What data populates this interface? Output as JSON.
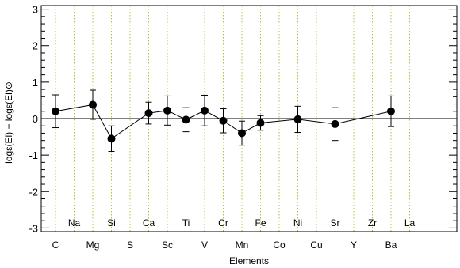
{
  "chart_data": {
    "type": "scatter",
    "title": "",
    "xlabel": "Elements",
    "ylabel": "logε(El) − logε(El)⊙",
    "ylim": [
      -3.1,
      3.1
    ],
    "yticks": [
      -3,
      -2,
      -1,
      0,
      1,
      2,
      3
    ],
    "grid": "vertical dotted lines at each element position",
    "reference_line": 0,
    "elements_bottom_row": [
      "C",
      "Mg",
      "S",
      "Sc",
      "V",
      "Mn",
      "Co",
      "Cu",
      "Y",
      "Ba"
    ],
    "elements_top_row": [
      "Na",
      "Si",
      "Ca",
      "Ti",
      "Cr",
      "Fe",
      "Ni",
      "Sr",
      "Zr",
      "La"
    ],
    "element_order": [
      "C",
      "Na",
      "Mg",
      "Si",
      "S",
      "Ca",
      "Sc",
      "Ti",
      "V",
      "Cr",
      "Mn",
      "Fe",
      "Co",
      "Ni",
      "Cu",
      "Sr",
      "Y",
      "Zr",
      "Ba",
      "La"
    ],
    "points": [
      {
        "element": "C",
        "y": 0.2,
        "err": 0.45
      },
      {
        "element": "Mg",
        "y": 0.38,
        "err": 0.4
      },
      {
        "element": "Si",
        "y": -0.55,
        "err": 0.35
      },
      {
        "element": "Ca",
        "y": 0.15,
        "err": 0.3
      },
      {
        "element": "Sc",
        "y": 0.22,
        "err": 0.4
      },
      {
        "element": "Ti",
        "y": -0.03,
        "err": 0.33
      },
      {
        "element": "V",
        "y": 0.22,
        "err": 0.42
      },
      {
        "element": "Cr",
        "y": -0.06,
        "err": 0.33
      },
      {
        "element": "Mn",
        "y": -0.4,
        "err": 0.33
      },
      {
        "element": "Fe",
        "y": -0.12,
        "err": 0.2
      },
      {
        "element": "Ni",
        "y": -0.02,
        "err": 0.36
      },
      {
        "element": "Sr",
        "y": -0.15,
        "err": 0.45
      },
      {
        "element": "Ba",
        "y": 0.2,
        "err": 0.42
      }
    ]
  }
}
